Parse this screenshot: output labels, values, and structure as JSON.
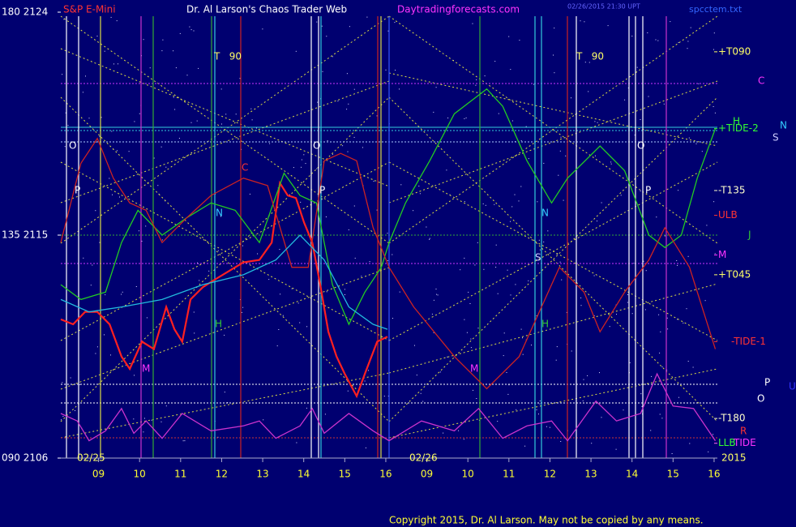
{
  "chart_data": {
    "type": "line",
    "title": "Dr. Al Larson's Chaos Trader Web",
    "subtitle": "S&P E-Mini",
    "site": "Daytradingforecasts.com",
    "file": "spcctem.txt",
    "stamp": "02/26/2015 21:30 UPT",
    "copyright": "Copyright 2015, Dr. Al Larson. May not be copied by any means.",
    "xlim": [
      8.08,
      24.08
    ],
    "ylim": [
      2106,
      2124
    ],
    "xticks": [
      {
        "value": 9,
        "label": "09"
      },
      10,
      11,
      12,
      13,
      14,
      15,
      16,
      {
        "value": 17,
        "label": "09"
      },
      {
        "value": 18,
        "label": "10"
      },
      {
        "value": 19,
        "label": "11"
      },
      {
        "value": 20,
        "label": "12"
      },
      {
        "value": 21,
        "label": "13"
      },
      {
        "value": 22,
        "label": "14"
      },
      {
        "value": 23,
        "label": "15"
      },
      {
        "value": 24,
        "label": "16"
      }
    ],
    "yticks": [
      {
        "value": 2124,
        "label": "180  2124"
      },
      {
        "value": 2115,
        "label": "135  2115"
      },
      {
        "value": 2106,
        "label": "090  2106"
      }
    ],
    "series": [
      {
        "color": "#ff2020",
        "x": [
          8.08,
          8.38,
          8.67,
          8.97,
          9.27,
          9.56,
          9.76,
          10.06,
          10.35,
          10.65,
          10.85,
          11.04,
          11.24,
          11.54,
          11.83,
          12.13,
          12.53,
          12.92,
          13.22,
          13.42,
          13.61,
          13.81,
          14.01,
          14.21,
          14.4,
          14.6,
          14.8,
          15.0,
          15.29,
          15.49,
          15.79,
          16.04
        ],
        "values": [
          2111.6,
          2111.4,
          2111.9,
          2111.9,
          2111.4,
          2110.1,
          2109.6,
          2110.7,
          2110.4,
          2112.1,
          2111.2,
          2110.7,
          2112.4,
          2112.9,
          2113.2,
          2113.5,
          2113.9,
          2114.0,
          2114.7,
          2117.1,
          2116.6,
          2116.5,
          2115.5,
          2114.7,
          2113.0,
          2111.1,
          2110.1,
          2109.4,
          2108.5,
          2109.4,
          2110.7,
          2110.9
        ]
      },
      {
        "color": "#22cc22",
        "x": [
          8.08,
          8.57,
          9.17,
          9.56,
          9.96,
          10.55,
          11.15,
          11.74,
          12.33,
          12.92,
          13.52,
          13.91,
          14.31,
          14.7,
          15.1,
          15.49,
          15.89,
          16.08,
          16.48,
          17.07,
          17.67,
          18.46,
          18.85,
          19.44,
          20.04,
          20.43,
          21.22,
          21.82,
          22.41,
          22.8,
          23.2,
          23.59,
          24.03
        ],
        "values": [
          2113.0,
          2112.4,
          2112.7,
          2114.7,
          2116.0,
          2115.0,
          2115.7,
          2116.3,
          2116.0,
          2114.7,
          2117.5,
          2116.6,
          2116.3,
          2113.0,
          2111.4,
          2112.7,
          2113.7,
          2114.7,
          2116.3,
          2118.0,
          2119.9,
          2120.9,
          2120.2,
          2118.0,
          2116.3,
          2117.3,
          2118.6,
          2117.6,
          2115.0,
          2114.5,
          2115.0,
          2117.3,
          2119.3
        ]
      },
      {
        "color": "#cc2222",
        "x": [
          8.08,
          8.57,
          8.97,
          9.36,
          9.76,
          10.16,
          10.55,
          11.15,
          11.74,
          12.53,
          13.12,
          13.71,
          14.11,
          14.5,
          14.9,
          15.29,
          15.69,
          16.08,
          16.68,
          17.67,
          18.46,
          19.25,
          20.23,
          20.83,
          21.22,
          21.82,
          22.41,
          22.8,
          23.4,
          24.03
        ],
        "values": [
          2114.7,
          2117.9,
          2118.9,
          2117.3,
          2116.3,
          2116.0,
          2114.7,
          2115.7,
          2116.6,
          2117.3,
          2117.0,
          2113.7,
          2113.7,
          2118.0,
          2118.3,
          2118.0,
          2115.3,
          2113.7,
          2112.1,
          2110.1,
          2108.8,
          2110.1,
          2113.7,
          2112.7,
          2111.1,
          2112.7,
          2114.0,
          2115.3,
          2113.7,
          2110.4
        ]
      },
      {
        "color": "#22bbdd",
        "x": [
          8.08,
          8.77,
          9.56,
          10.55,
          11.54,
          12.53,
          13.32,
          13.91,
          14.5,
          15.1,
          15.69,
          16.04
        ],
        "values": [
          2112.4,
          2111.9,
          2112.1,
          2112.4,
          2113.0,
          2113.4,
          2114.0,
          2115.0,
          2114.0,
          2112.1,
          2111.4,
          2111.2
        ]
      },
      {
        "color": "#cc33cc",
        "x": [
          8.08,
          8.48,
          8.77,
          9.17,
          9.56,
          9.86,
          10.16,
          10.55,
          11.04,
          11.74,
          12.53,
          12.92,
          13.32,
          13.91,
          14.21,
          14.5,
          15.1,
          15.69,
          16.08,
          16.87,
          17.67,
          18.26,
          18.85,
          19.44,
          20.04,
          20.43,
          21.12,
          21.62,
          22.21,
          22.61,
          23.0,
          23.5,
          24.03
        ],
        "values": [
          2107.8,
          2107.5,
          2106.7,
          2107.1,
          2108.0,
          2107.0,
          2107.5,
          2106.8,
          2107.8,
          2107.1,
          2107.3,
          2107.5,
          2106.8,
          2107.3,
          2108.0,
          2107.0,
          2107.8,
          2107.1,
          2106.7,
          2107.5,
          2107.1,
          2108.0,
          2106.8,
          2107.3,
          2107.5,
          2106.7,
          2108.3,
          2107.5,
          2107.8,
          2109.4,
          2108.1,
          2108.0,
          2106.7
        ]
      }
    ],
    "levels": [
      {
        "label": "+T090",
        "value": 2122.4,
        "color": "#ffff66"
      },
      {
        "label": "+TIDE-2",
        "value": 2119.3,
        "color": "#33ff33"
      },
      {
        "label": "-T135",
        "value": 2116.8,
        "color": "#ffffcc"
      },
      {
        "label": "ULB",
        "value": 2115.8,
        "color": "#ff3333"
      },
      {
        "label": "M",
        "value": 2114.2,
        "color": "#ff33ff"
      },
      {
        "label": "+T045",
        "value": 2113.4,
        "color": "#ffff66"
      },
      {
        "label": "-TIDE-1",
        "value": 2110.7,
        "color": "#ff3333"
      },
      {
        "label": "-T180",
        "value": 2107.6,
        "color": "#ffffcc"
      },
      {
        "label": "LLB",
        "value": 2106.6,
        "color": "#33ff33"
      },
      {
        "label": "TIDE",
        "value": 2106.6,
        "color": "#ff33ff"
      }
    ],
    "markers": [
      {
        "text": "C",
        "color": "#ff33ff"
      },
      {
        "text": "H",
        "color": "#33ff33"
      },
      {
        "text": "N",
        "color": "#33ccff"
      },
      {
        "text": "S",
        "color": "#ccccff"
      },
      {
        "text": "J",
        "color": "#33cc33"
      },
      {
        "text": "P",
        "color": "#ffffff"
      },
      {
        "text": "O",
        "color": "#ffffff"
      },
      {
        "text": "U",
        "color": "#3333ff"
      },
      {
        "text": "R",
        "color": "#ff3333"
      },
      {
        "text": "O",
        "color": "#ffffff"
      },
      {
        "text": "P",
        "color": "#ffffff"
      },
      {
        "text": "T   90",
        "color": "#ffff66"
      },
      {
        "text": "C",
        "color": "#ff3333"
      },
      {
        "text": "N",
        "color": "#33ccff"
      },
      {
        "text": "H",
        "color": "#33cc33"
      },
      {
        "text": "M",
        "color": "#ff33ff"
      },
      {
        "text": "O",
        "color": "#ffffff"
      },
      {
        "text": "P",
        "color": "#ffffff"
      },
      {
        "text": "T   90",
        "color": "#ffff66"
      },
      {
        "text": "N",
        "color": "#33ccff"
      },
      {
        "text": "S",
        "color": "#ccccff"
      },
      {
        "text": "H",
        "color": "#33cc33"
      },
      {
        "text": "M",
        "color": "#ff33ff"
      },
      {
        "text": "O",
        "color": "#ffffff"
      },
      {
        "text": "P",
        "color": "#ffffff"
      },
      {
        "text": "02/25",
        "color": "#ffff66"
      },
      {
        "text": "02/26",
        "color": "#ffff66"
      },
      {
        "text": "2015",
        "color": "#ffff66"
      }
    ]
  }
}
